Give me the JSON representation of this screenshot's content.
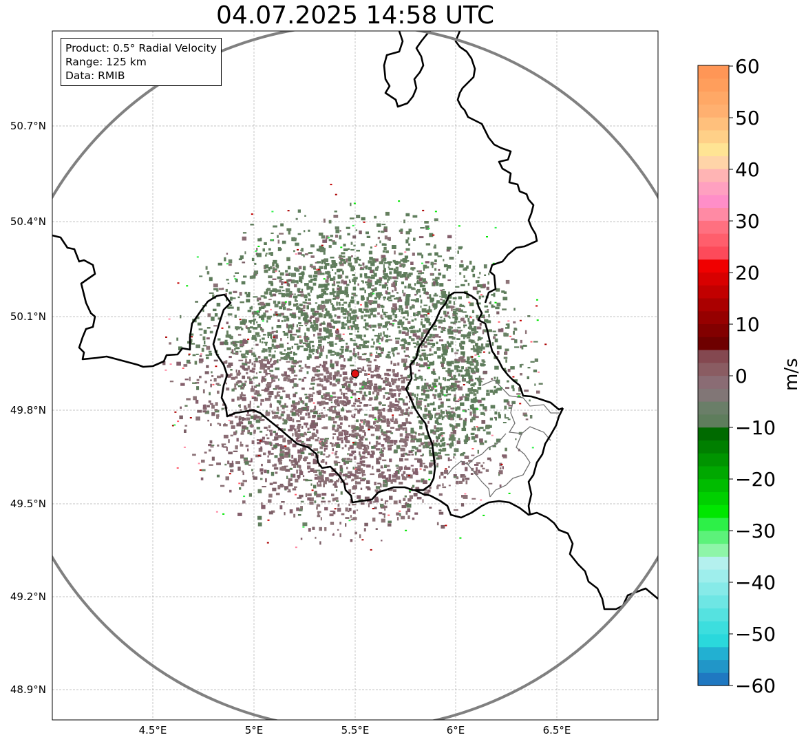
{
  "title": "04.07.2025 14:58 UTC",
  "info": {
    "product": "Product: 0.5° Radial Velocity",
    "range": "Range: 125 km",
    "data": "Data: RMIB"
  },
  "map": {
    "lon_range": [
      4.0,
      7.0
    ],
    "lat_range": [
      48.8,
      51.0
    ],
    "lon_ticks": [
      "4.5°E",
      "5°E",
      "5.5°E",
      "6°E",
      "6.5°E"
    ],
    "lon_tick_values": [
      4.5,
      5.0,
      5.5,
      6.0,
      6.5
    ],
    "lat_ticks": [
      "50.7°N",
      "50.4°N",
      "50.1°N",
      "49.8°N",
      "49.5°N",
      "49.2°N",
      "48.9°N"
    ],
    "lat_tick_values": [
      50.7,
      50.4,
      50.1,
      49.8,
      49.5,
      49.2,
      48.9
    ],
    "radar_site": {
      "lon": 5.505,
      "lat": 49.915
    },
    "range_ring_km": 125,
    "grid": true
  },
  "colorbar": {
    "label": "m/s",
    "min": -60,
    "max": 60,
    "ticks": [
      "60",
      "50",
      "40",
      "30",
      "20",
      "10",
      "0",
      "−10",
      "−20",
      "−30",
      "−40",
      "−50",
      "−60"
    ],
    "tick_values": [
      60,
      50,
      40,
      30,
      20,
      10,
      0,
      -10,
      -20,
      -30,
      -40,
      -50,
      -60
    ],
    "colors": [
      "#1f78c1",
      "#2196c8",
      "#22b0d2",
      "#2ad8dc",
      "#3cdede",
      "#55e2e0",
      "#6ee6e4",
      "#86eae8",
      "#9eeeec",
      "#b4f0ee",
      "#8ef5a8",
      "#5cf27a",
      "#2df048",
      "#00e600",
      "#00d000",
      "#00bc00",
      "#00a800",
      "#009400",
      "#007f00",
      "#006a00",
      "#5e7d5c",
      "#6a7e68",
      "#817676",
      "#8a6c74",
      "#8a5c62",
      "#844850",
      "#6e0000",
      "#820000",
      "#960000",
      "#aa0000",
      "#c20000",
      "#d80000",
      "#f00000",
      "#fd4a5a",
      "#ff5e6c",
      "#ff7080",
      "#ff8aa4",
      "#ff8ec8",
      "#ffa0c0",
      "#ffb4b4",
      "#ffd4a8",
      "#ffe494",
      "#ffd088",
      "#ffc07c",
      "#ffb070",
      "#ffa866",
      "#ff9e5c",
      "#ff9656"
    ]
  }
}
